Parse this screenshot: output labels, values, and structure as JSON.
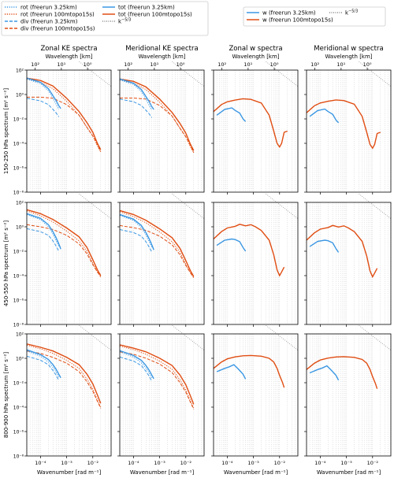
{
  "legend_left": {
    "col1": [
      {
        "label": "rot (freerun 3.25km)",
        "color": "#3b97e3",
        "dash": "1.2,1.6"
      },
      {
        "label": "rot (freerun 100mtopo15s)",
        "color": "#e04d12",
        "dash": "1.2,1.6"
      },
      {
        "label": "div (freerun 3.25km)",
        "color": "#3b97e3",
        "dash": "4,2"
      },
      {
        "label": "div (freerun 100mtopo15s)",
        "color": "#e04d12",
        "dash": "4,2"
      }
    ],
    "col2": [
      {
        "label": "tot (freerun 3.25km)",
        "color": "#3b97e3",
        "dash": ""
      },
      {
        "label": "tot (freerun 100mtopo15s)",
        "color": "#e04d12",
        "dash": ""
      },
      {
        "label": "k",
        "sup": "−5/3",
        "color": "#888888",
        "dash": "1,1.5"
      }
    ]
  },
  "legend_right": {
    "col1": [
      {
        "label": "w (freerun 3.25km)",
        "color": "#3b97e3",
        "dash": ""
      },
      {
        "label": "w (freerun 100mtopo15s)",
        "color": "#e04d12",
        "dash": ""
      }
    ],
    "col2": [
      {
        "label": "k",
        "sup": "−5/3",
        "color": "#888888",
        "dash": "1,1.5"
      }
    ]
  },
  "chart_data": {
    "type": "line",
    "log_x": true,
    "log_y": true,
    "grid": "x-minor-dotted",
    "xlim": [
      3e-05,
      0.05
    ],
    "ylim": [
      1e-08,
      100
    ],
    "columns": [
      {
        "title": "Zonal KE spectra",
        "kind": "ke"
      },
      {
        "title": "Meridional KE spectra",
        "kind": "ke"
      },
      {
        "title": "Zonal w spectra",
        "kind": "w"
      },
      {
        "title": "Meridional w spectra",
        "kind": "w"
      }
    ],
    "top_axis_label": "Wavelength [km]",
    "top_ticks": [
      "10²",
      "10¹",
      "10⁰"
    ],
    "bottom_axis_label": "Wavenumber [rad m⁻¹]",
    "bottom_ticks": [
      "10⁻⁴",
      "10⁻³",
      "10⁻²"
    ],
    "y_ticks": [
      "10²",
      "10⁰",
      "10⁻²",
      "10⁻⁴",
      "10⁻⁶",
      "10⁻⁸"
    ],
    "row_labels": [
      "150-250 hPa spectrum [m² s⁻²]",
      "450-550 hPa spectrum [m² s⁻²]",
      "800-900 hPa spectrum [m² s⁻²]"
    ],
    "rows": [
      {
        "ke": {
          "tot_hr": [
            [
              3e-05,
              22
            ],
            [
              0.0001,
              14
            ],
            [
              0.0003,
              5
            ],
            [
              0.001,
              0.5
            ],
            [
              0.003,
              0.04
            ],
            [
              0.006,
              0.005
            ],
            [
              0.01,
              0.0008
            ],
            [
              0.015,
              0.0001
            ],
            [
              0.02,
              3e-05
            ]
          ],
          "rot_hr": [
            [
              3e-05,
              18
            ],
            [
              0.0001,
              10
            ],
            [
              0.0003,
              3
            ],
            [
              0.001,
              0.28
            ],
            [
              0.003,
              0.02
            ],
            [
              0.006,
              0.002
            ],
            [
              0.01,
              0.0004
            ],
            [
              0.015,
              6e-05
            ],
            [
              0.02,
              2e-05
            ]
          ],
          "div_hr": [
            [
              3e-05,
              0.6
            ],
            [
              0.0001,
              0.6
            ],
            [
              0.0003,
              0.5
            ],
            [
              0.001,
              0.15
            ],
            [
              0.003,
              0.02
            ],
            [
              0.006,
              0.002
            ],
            [
              0.01,
              0.0004
            ],
            [
              0.015,
              8e-05
            ],
            [
              0.02,
              2e-05
            ]
          ],
          "tot_lr": [
            [
              3e-05,
              22
            ],
            [
              6e-05,
              14
            ],
            [
              0.0001,
              10
            ],
            [
              0.0002,
              3
            ],
            [
              0.0003,
              0.8
            ],
            [
              0.0004,
              0.3
            ],
            [
              0.0005,
              0.12
            ],
            [
              0.0006,
              0.07
            ]
          ],
          "rot_lr": [
            [
              3e-05,
              18
            ],
            [
              0.0001,
              8
            ],
            [
              0.0002,
              2
            ],
            [
              0.0003,
              0.5
            ],
            [
              0.0004,
              0.15
            ],
            [
              0.0005,
              0.06
            ]
          ],
          "div_lr": [
            [
              3e-05,
              0.5
            ],
            [
              0.0001,
              0.3
            ],
            [
              0.0002,
              0.15
            ],
            [
              0.0003,
              0.06
            ],
            [
              0.0004,
              0.03
            ],
            [
              0.0005,
              0.015
            ]
          ]
        },
        "w": {
          "hr": [
            [
              3e-05,
              0.04
            ],
            [
              6e-05,
              0.15
            ],
            [
              0.0001,
              0.25
            ],
            [
              0.0002,
              0.35
            ],
            [
              0.0004,
              0.45
            ],
            [
              0.0008,
              0.4
            ],
            [
              0.002,
              0.2
            ],
            [
              0.004,
              0.02
            ],
            [
              0.006,
              0.001
            ],
            [
              0.008,
              0.0001
            ],
            [
              0.01,
              5e-05
            ],
            [
              0.012,
              0.0001
            ],
            [
              0.015,
              0.0008
            ],
            [
              0.02,
              0.001
            ]
          ],
          "lr": [
            [
              4e-05,
              0.02
            ],
            [
              8e-05,
              0.06
            ],
            [
              0.00015,
              0.08
            ],
            [
              0.0002,
              0.05
            ],
            [
              0.0003,
              0.03
            ],
            [
              0.0004,
              0.01
            ],
            [
              0.0005,
              0.006
            ]
          ]
        }
      },
      {
        "ke": {
          "tot_hr": [
            [
              3e-05,
              25
            ],
            [
              0.0001,
              12
            ],
            [
              0.0003,
              4
            ],
            [
              0.001,
              0.8
            ],
            [
              0.003,
              0.15
            ],
            [
              0.006,
              0.02
            ],
            [
              0.01,
              0.002
            ],
            [
              0.015,
              0.0003
            ],
            [
              0.02,
              0.0001
            ]
          ],
          "rot_hr": [
            [
              3e-05,
              20
            ],
            [
              0.0001,
              8
            ],
            [
              0.0003,
              2.5
            ],
            [
              0.001,
              0.45
            ],
            [
              0.003,
              0.07
            ],
            [
              0.006,
              0.01
            ],
            [
              0.01,
              0.001
            ],
            [
              0.015,
              0.0002
            ],
            [
              0.02,
              8e-05
            ]
          ],
          "div_hr": [
            [
              3e-05,
              1.5
            ],
            [
              0.0001,
              1
            ],
            [
              0.0003,
              0.6
            ],
            [
              0.001,
              0.2
            ],
            [
              0.003,
              0.04
            ],
            [
              0.006,
              0.006
            ],
            [
              0.01,
              0.0008
            ],
            [
              0.015,
              0.0002
            ],
            [
              0.02,
              8e-05
            ]
          ],
          "tot_lr": [
            [
              3e-05,
              12
            ],
            [
              0.0001,
              5
            ],
            [
              0.0002,
              1.5
            ],
            [
              0.0003,
              0.4
            ],
            [
              0.0004,
              0.12
            ],
            [
              0.0005,
              0.04
            ],
            [
              0.0006,
              0.015
            ]
          ],
          "rot_lr": [
            [
              3e-05,
              10
            ],
            [
              0.0001,
              4
            ],
            [
              0.0002,
              1
            ],
            [
              0.0003,
              0.25
            ],
            [
              0.0004,
              0.07
            ],
            [
              0.0005,
              0.025
            ]
          ],
          "div_lr": [
            [
              3e-05,
              0.7
            ],
            [
              0.0001,
              0.4
            ],
            [
              0.0002,
              0.2
            ],
            [
              0.0003,
              0.07
            ],
            [
              0.0004,
              0.025
            ],
            [
              0.0005,
              0.01
            ]
          ]
        },
        "w": {
          "hr": [
            [
              3e-05,
              0.1
            ],
            [
              6e-05,
              0.4
            ],
            [
              0.0001,
              0.8
            ],
            [
              0.0002,
              1.1
            ],
            [
              0.0003,
              1.6
            ],
            [
              0.0005,
              1.2
            ],
            [
              0.0008,
              1.5
            ],
            [
              0.0012,
              1.0
            ],
            [
              0.002,
              0.5
            ],
            [
              0.004,
              0.08
            ],
            [
              0.006,
              0.005
            ],
            [
              0.008,
              0.0003
            ],
            [
              0.01,
              0.0001
            ],
            [
              0.012,
              0.0002
            ],
            [
              0.015,
              0.0005
            ]
          ],
          "lr": [
            [
              4e-05,
              0.03
            ],
            [
              8e-05,
              0.08
            ],
            [
              0.00015,
              0.1
            ],
            [
              0.0002,
              0.09
            ],
            [
              0.0003,
              0.06
            ],
            [
              0.0004,
              0.02
            ],
            [
              0.0005,
              0.01
            ]
          ]
        }
      },
      {
        "ke": {
          "tot_hr": [
            [
              3e-05,
              15
            ],
            [
              0.0001,
              8
            ],
            [
              0.0003,
              4
            ],
            [
              0.001,
              1.2
            ],
            [
              0.003,
              0.3
            ],
            [
              0.006,
              0.05
            ],
            [
              0.01,
              0.008
            ],
            [
              0.015,
              0.001
            ],
            [
              0.02,
              0.0002
            ]
          ],
          "rot_hr": [
            [
              3e-05,
              12
            ],
            [
              0.0001,
              6
            ],
            [
              0.0003,
              2.5
            ],
            [
              0.001,
              0.7
            ],
            [
              0.003,
              0.15
            ],
            [
              0.006,
              0.02
            ],
            [
              0.01,
              0.003
            ],
            [
              0.015,
              0.0004
            ],
            [
              0.02,
              0.0001
            ]
          ],
          "div_hr": [
            [
              3e-05,
              4
            ],
            [
              0.0001,
              2.5
            ],
            [
              0.0003,
              1.2
            ],
            [
              0.001,
              0.4
            ],
            [
              0.003,
              0.08
            ],
            [
              0.006,
              0.012
            ],
            [
              0.01,
              0.002
            ],
            [
              0.015,
              0.0003
            ],
            [
              0.02,
              8e-05
            ]
          ],
          "tot_lr": [
            [
              3e-05,
              5
            ],
            [
              0.0001,
              2
            ],
            [
              0.0002,
              0.8
            ],
            [
              0.0003,
              0.3
            ],
            [
              0.0004,
              0.12
            ],
            [
              0.0005,
              0.05
            ],
            [
              0.0006,
              0.025
            ]
          ],
          "rot_lr": [
            [
              3e-05,
              4
            ],
            [
              0.0001,
              1.5
            ],
            [
              0.0002,
              0.5
            ],
            [
              0.0003,
              0.18
            ],
            [
              0.0004,
              0.07
            ],
            [
              0.0005,
              0.03
            ]
          ],
          "div_lr": [
            [
              3e-05,
              1.5
            ],
            [
              0.0001,
              0.7
            ],
            [
              0.0002,
              0.3
            ],
            [
              0.0003,
              0.1
            ],
            [
              0.0004,
              0.04
            ],
            [
              0.0005,
              0.015
            ]
          ]
        },
        "w": {
          "hr": [
            [
              3e-05,
              0.15
            ],
            [
              6e-05,
              0.5
            ],
            [
              0.0001,
              0.9
            ],
            [
              0.0002,
              1.3
            ],
            [
              0.0004,
              1.6
            ],
            [
              0.0008,
              1.7
            ],
            [
              0.002,
              1.5
            ],
            [
              0.004,
              1.0
            ],
            [
              0.006,
              0.5
            ],
            [
              0.008,
              0.15
            ],
            [
              0.01,
              0.04
            ],
            [
              0.013,
              0.01
            ],
            [
              0.015,
              0.004
            ]
          ],
          "lr": [
            [
              4e-05,
              0.08
            ],
            [
              8e-05,
              0.15
            ],
            [
              0.00012,
              0.2
            ],
            [
              0.00018,
              0.3
            ],
            [
              0.00025,
              0.15
            ],
            [
              0.0003,
              0.1
            ],
            [
              0.0004,
              0.05
            ],
            [
              0.0005,
              0.02
            ]
          ]
        }
      }
    ]
  }
}
